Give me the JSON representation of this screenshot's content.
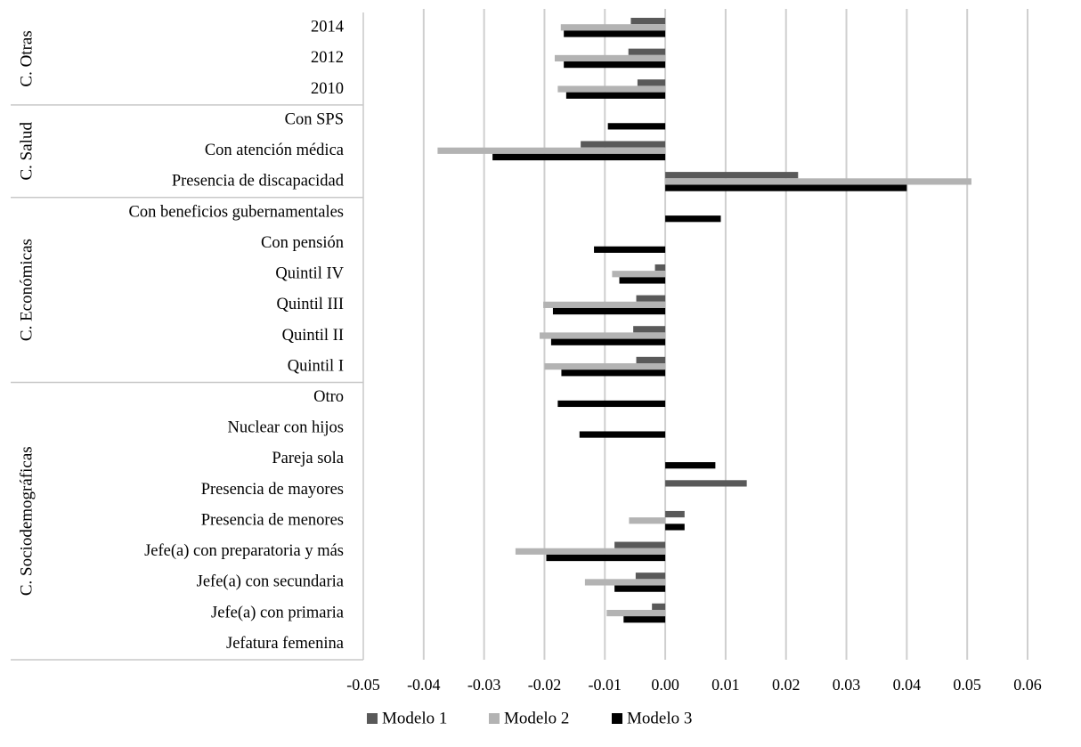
{
  "chart_data": {
    "type": "bar",
    "orientation": "horizontal",
    "title": "",
    "xlabel": "",
    "ylabel": "",
    "xlim": [
      -0.05,
      0.06
    ],
    "x_ticks": [
      "-0.05",
      "-0.04",
      "-0.03",
      "-0.02",
      "-0.01",
      "0.00",
      "0.01",
      "0.02",
      "0.03",
      "0.04",
      "0.05",
      "0.06"
    ],
    "grid": true,
    "legend_position": "bottom",
    "categories": [
      "2014",
      "2012",
      "2010",
      "Con SPS",
      "Con atención médica",
      "Presencia de discapacidad",
      "Con beneficios gubernamentales",
      "Con pensión",
      "Quintil IV",
      "Quintil III",
      "Quintil II",
      "Quintil I",
      "Otro",
      "Nuclear con hijos",
      "Pareja sola",
      "Presencia de mayores",
      "Presencia de menores",
      "Jefe(a) con preparatoria y más",
      "Jefe(a) con secundaria",
      "Jefe(a) con primaria",
      "Jefatura femenina"
    ],
    "groups": [
      {
        "label": "C. Otras",
        "count": 3
      },
      {
        "label": "C. Salud",
        "count": 3
      },
      {
        "label": "C. Económicas",
        "count": 6
      },
      {
        "label": "C. Sociodemográficas",
        "count": 9
      }
    ],
    "series": [
      {
        "name": "Modelo 1",
        "color": "#595959",
        "values": [
          -0.0057,
          -0.0061,
          -0.0046,
          null,
          -0.014,
          0.022,
          null,
          null,
          -0.0017,
          -0.0048,
          -0.0053,
          -0.0048,
          null,
          null,
          null,
          0.0135,
          0.0032,
          -0.0084,
          -0.0049,
          -0.0022,
          null
        ]
      },
      {
        "name": "Modelo 2",
        "color": "#b3b3b3",
        "values": [
          -0.0173,
          -0.0183,
          -0.0178,
          null,
          -0.0377,
          0.0507,
          null,
          null,
          -0.0088,
          -0.0202,
          -0.0208,
          -0.02,
          null,
          null,
          null,
          null,
          -0.006,
          -0.0248,
          -0.0133,
          -0.0097,
          null
        ]
      },
      {
        "name": "Modelo 3",
        "color": "#000000",
        "values": [
          -0.0168,
          -0.0168,
          -0.0164,
          -0.0095,
          -0.0286,
          0.04,
          0.0092,
          -0.0118,
          -0.0076,
          -0.0186,
          -0.0189,
          -0.0172,
          -0.0178,
          -0.0142,
          0.0083,
          null,
          0.0032,
          -0.0197,
          -0.0084,
          -0.0069,
          null
        ]
      }
    ]
  }
}
